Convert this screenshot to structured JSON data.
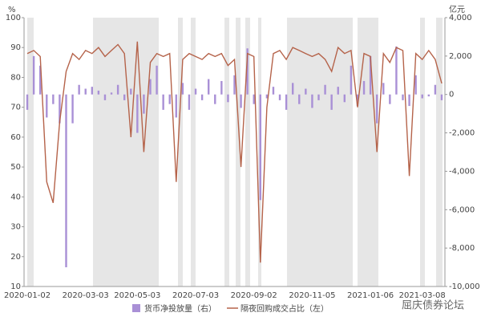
{
  "chart_data": {
    "type": "bar-line",
    "y_label": "%",
    "y2_label": "亿元",
    "watermark": "屈庆债券论坛",
    "categories": [
      "2020-01-02",
      null,
      null,
      null,
      null,
      null,
      null,
      null,
      null,
      "2020-03-03",
      null,
      null,
      null,
      null,
      null,
      null,
      null,
      "2020-05-03",
      null,
      null,
      null,
      null,
      null,
      null,
      null,
      null,
      "2020-07-03",
      null,
      null,
      null,
      null,
      null,
      null,
      null,
      null,
      "2020-09-02",
      null,
      null,
      null,
      null,
      null,
      null,
      null,
      null,
      "2020-11-05",
      null,
      null,
      null,
      null,
      null,
      null,
      null,
      null,
      "2021-01-06",
      null,
      null,
      null,
      null,
      null,
      null,
      null,
      "2021-03-08",
      null,
      null,
      null
    ],
    "series": [
      {
        "name": "货币净投放量（右）",
        "color": "#a990d6",
        "axis": "y2",
        "kind": "bar",
        "values": [
          -800,
          2000,
          1500,
          -1200,
          -500,
          -1500,
          -9000,
          -1500,
          500,
          300,
          400,
          200,
          -300,
          100,
          500,
          -300,
          300,
          -2000,
          -1000,
          800,
          1500,
          -800,
          -500,
          -1200,
          600,
          -800,
          300,
          -300,
          800,
          -500,
          700,
          -400,
          1000,
          -700,
          2400,
          -500,
          -5500,
          -200,
          400,
          -300,
          -800,
          600,
          -500,
          300,
          -700,
          -300,
          500,
          -800,
          400,
          -400,
          1500,
          -600,
          700,
          2000,
          -1500,
          600,
          -500,
          2500,
          -300,
          -600,
          1000,
          -200,
          -100,
          500,
          -300
        ]
      },
      {
        "name": "隔夜回购成交占比（左）",
        "color": "#b5634a",
        "axis": "y",
        "kind": "line",
        "values": [
          88,
          89,
          87,
          45,
          38,
          65,
          82,
          88,
          86,
          89,
          88,
          90,
          87,
          89,
          91,
          88,
          60,
          92,
          55,
          85,
          88,
          87,
          88,
          45,
          86,
          88,
          87,
          86,
          88,
          87,
          88,
          84,
          86,
          50,
          88,
          87,
          18,
          70,
          88,
          89,
          86,
          90,
          89,
          88,
          87,
          88,
          86,
          82,
          90,
          88,
          89,
          70,
          88,
          87,
          55,
          88,
          85,
          90,
          89,
          47,
          88,
          86,
          89,
          86,
          78
        ]
      }
    ],
    "ylim": [
      10,
      100
    ],
    "yticks": [
      10,
      20,
      30,
      40,
      50,
      60,
      70,
      80,
      90,
      100
    ],
    "y2lim": [
      -10000,
      4000
    ],
    "y2ticks": [
      {
        "value": -10000,
        "label": "-10,000"
      },
      {
        "value": -8000,
        "label": "-8,000"
      },
      {
        "value": -6000,
        "label": "-6,000"
      },
      {
        "value": -4000,
        "label": "-4,000"
      },
      {
        "value": -2000,
        "label": "-2,000"
      },
      0,
      {
        "value": 2000,
        "label": "2,000"
      },
      {
        "value": 4000,
        "label": "4,000"
      }
    ],
    "legend": "bottom"
  }
}
